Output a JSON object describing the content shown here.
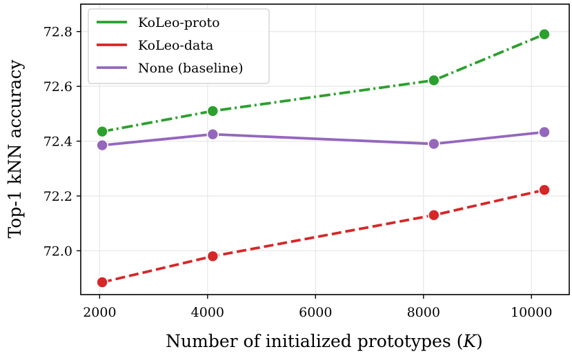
{
  "chart_data": {
    "type": "line",
    "xlabel": "Number of initialized prototypes (",
    "xlabel_italic": "K",
    "xlabel_suffix": ")",
    "ylabel": "Top-1 kNN accuracy",
    "xlim": [
      1650,
      10700
    ],
    "ylim": [
      71.84,
      72.9
    ],
    "xticks": [
      2000,
      4000,
      6000,
      8000,
      10000
    ],
    "yticks": [
      72.0,
      72.2,
      72.4,
      72.6,
      72.8
    ],
    "ytick_labels": [
      "72.0",
      "72.2",
      "72.4",
      "72.6",
      "72.8"
    ],
    "grid": true,
    "legend_position": "top-left",
    "series": [
      {
        "name": "KoLeo-proto",
        "color": "#2ca02c",
        "style": "dashdot",
        "x": [
          2048,
          4096,
          8192,
          10240
        ],
        "y": [
          72.435,
          72.51,
          72.622,
          72.79
        ]
      },
      {
        "name": "KoLeo-data",
        "color": "#d62728",
        "style": "dashed",
        "x": [
          2048,
          4096,
          8192,
          10240
        ],
        "y": [
          71.885,
          71.98,
          72.13,
          72.222
        ]
      },
      {
        "name": "None (baseline)",
        "color": "#9467bd",
        "style": "solid",
        "x": [
          2048,
          4096,
          8192,
          10240
        ],
        "y": [
          72.385,
          72.425,
          72.39,
          72.433
        ]
      }
    ]
  }
}
